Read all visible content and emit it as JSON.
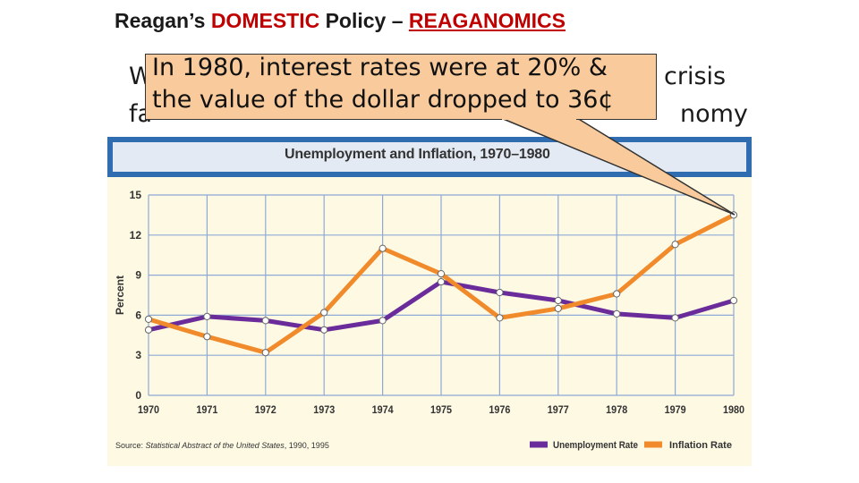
{
  "slide": {
    "title_prefix": "Reagan’s ",
    "title_accent": "DOMESTIC",
    "title_mid": " Policy – ",
    "title_link": "REAGANOMICS"
  },
  "background_text": {
    "line1_left": "W",
    "line1_right": "crisis",
    "line2_left": "fa",
    "line2_right": "nomy"
  },
  "callout": {
    "line1": "In 1980, interest rates were at 20% &",
    "line2": "the value of the dollar dropped to 36¢"
  },
  "chart_data": {
    "type": "line",
    "title": "Unemployment and Inflation, 1970–1980",
    "ylabel": "Percent",
    "xlabel": "",
    "ylim": [
      0,
      15
    ],
    "yticks": [
      0,
      3,
      6,
      9,
      12,
      15
    ],
    "categories": [
      "1970",
      "1971",
      "1972",
      "1973",
      "1974",
      "1975",
      "1976",
      "1977",
      "1978",
      "1979",
      "1980"
    ],
    "series": [
      {
        "name": "Unemployment Rate",
        "color": "#6a2c9a",
        "values": [
          4.9,
          5.9,
          5.6,
          4.9,
          5.6,
          8.5,
          7.7,
          7.1,
          6.1,
          5.8,
          7.1
        ]
      },
      {
        "name": "Inflation Rate",
        "color": "#f08a2a",
        "values": [
          5.7,
          4.4,
          3.2,
          6.2,
          11.0,
          9.1,
          5.8,
          6.5,
          7.6,
          11.3,
          13.5
        ]
      }
    ],
    "grid": true,
    "legend": "bottom-right",
    "source_prefix": "Source: ",
    "source_title": "Statistical Abstract of the United States",
    "source_suffix": ", 1990, 1995"
  }
}
